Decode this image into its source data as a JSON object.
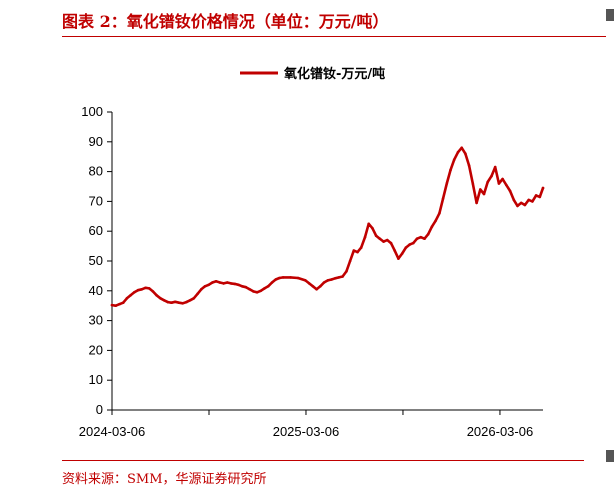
{
  "figure": {
    "title": "图表 2：氧化镨钕价格情况（单位：万元/吨）",
    "source": "资料来源：SMM，华源证券研究所",
    "accent_color": "#c00000"
  },
  "chart_data": {
    "type": "line",
    "title": "",
    "xlabel": "",
    "ylabel": "",
    "ylim": [
      0,
      100
    ],
    "yticks": [
      0,
      10,
      20,
      30,
      40,
      50,
      60,
      70,
      80,
      90,
      100
    ],
    "grid": false,
    "legend": "top-center",
    "x_range": [
      "2024-03-06",
      "2026-05-26"
    ],
    "xtick_labels": [
      "2024-03-06",
      "2025-03-06",
      "2026-03-06"
    ],
    "series": [
      {
        "name": "氧化镨钕-万元/吨",
        "color": "#c00000",
        "points": [
          [
            "2024-03-06",
            35.2
          ],
          [
            "2024-03-13",
            35.0
          ],
          [
            "2024-03-20",
            35.5
          ],
          [
            "2024-03-27",
            36.0
          ],
          [
            "2024-04-03",
            37.5
          ],
          [
            "2024-04-10",
            38.5
          ],
          [
            "2024-04-17",
            39.5
          ],
          [
            "2024-04-24",
            40.2
          ],
          [
            "2024-05-01",
            40.5
          ],
          [
            "2024-05-08",
            41.0
          ],
          [
            "2024-05-15",
            40.8
          ],
          [
            "2024-05-22",
            39.8
          ],
          [
            "2024-05-29",
            38.5
          ],
          [
            "2024-06-05",
            37.5
          ],
          [
            "2024-06-12",
            36.8
          ],
          [
            "2024-06-19",
            36.2
          ],
          [
            "2024-06-26",
            36.0
          ],
          [
            "2024-07-03",
            36.3
          ],
          [
            "2024-07-10",
            36.0
          ],
          [
            "2024-07-17",
            35.8
          ],
          [
            "2024-07-24",
            36.2
          ],
          [
            "2024-07-31",
            36.8
          ],
          [
            "2024-08-07",
            37.5
          ],
          [
            "2024-08-14",
            39.0
          ],
          [
            "2024-08-21",
            40.5
          ],
          [
            "2024-08-28",
            41.5
          ],
          [
            "2024-09-04",
            42.0
          ],
          [
            "2024-09-11",
            42.8
          ],
          [
            "2024-09-18",
            43.2
          ],
          [
            "2024-09-25",
            42.8
          ],
          [
            "2024-10-02",
            42.5
          ],
          [
            "2024-10-09",
            42.8
          ],
          [
            "2024-10-16",
            42.5
          ],
          [
            "2024-10-23",
            42.3
          ],
          [
            "2024-10-30",
            42.0
          ],
          [
            "2024-11-06",
            41.5
          ],
          [
            "2024-11-13",
            41.2
          ],
          [
            "2024-11-20",
            40.5
          ],
          [
            "2024-11-27",
            39.8
          ],
          [
            "2024-12-04",
            39.5
          ],
          [
            "2024-12-11",
            40.0
          ],
          [
            "2024-12-18",
            40.8
          ],
          [
            "2024-12-25",
            41.5
          ],
          [
            "2025-01-01",
            42.8
          ],
          [
            "2025-01-08",
            43.8
          ],
          [
            "2025-01-15",
            44.3
          ],
          [
            "2025-01-22",
            44.5
          ],
          [
            "2025-02-05",
            44.5
          ],
          [
            "2025-02-19",
            44.3
          ],
          [
            "2025-03-05",
            43.5
          ],
          [
            "2025-03-12",
            42.5
          ],
          [
            "2025-03-19",
            41.5
          ],
          [
            "2025-03-26",
            40.5
          ],
          [
            "2025-04-02",
            41.5
          ],
          [
            "2025-04-09",
            42.8
          ],
          [
            "2025-04-16",
            43.5
          ],
          [
            "2025-04-23",
            43.8
          ],
          [
            "2025-04-30",
            44.2
          ],
          [
            "2025-05-07",
            44.5
          ],
          [
            "2025-05-14",
            44.8
          ],
          [
            "2025-05-21",
            46.5
          ],
          [
            "2025-05-28",
            50.0
          ],
          [
            "2025-06-04",
            53.5
          ],
          [
            "2025-06-11",
            53.0
          ],
          [
            "2025-06-18",
            54.5
          ],
          [
            "2025-06-25",
            58.0
          ],
          [
            "2025-07-02",
            62.5
          ],
          [
            "2025-07-09",
            61.0
          ],
          [
            "2025-07-16",
            58.5
          ],
          [
            "2025-07-23",
            57.5
          ],
          [
            "2025-07-30",
            56.5
          ],
          [
            "2025-08-06",
            57.0
          ],
          [
            "2025-08-13",
            56.0
          ],
          [
            "2025-08-20",
            53.5
          ],
          [
            "2025-08-27",
            50.8
          ],
          [
            "2025-09-03",
            52.5
          ],
          [
            "2025-09-10",
            54.5
          ],
          [
            "2025-09-17",
            55.5
          ],
          [
            "2025-09-24",
            56.0
          ],
          [
            "2025-10-01",
            57.5
          ],
          [
            "2025-10-08",
            58.0
          ],
          [
            "2025-10-15",
            57.5
          ],
          [
            "2025-10-22",
            59.0
          ],
          [
            "2025-10-29",
            61.5
          ],
          [
            "2025-11-05",
            63.5
          ],
          [
            "2025-11-12",
            66.0
          ],
          [
            "2025-11-19",
            71.0
          ],
          [
            "2025-11-26",
            76.0
          ],
          [
            "2025-12-03",
            80.5
          ],
          [
            "2025-12-10",
            84.0
          ],
          [
            "2025-12-17",
            86.5
          ],
          [
            "2025-12-24",
            88.0
          ],
          [
            "2025-12-31",
            86.0
          ],
          [
            "2026-01-07",
            82.0
          ],
          [
            "2026-01-14",
            76.0
          ],
          [
            "2026-01-21",
            69.5
          ],
          [
            "2026-01-28",
            74.0
          ],
          [
            "2026-02-04",
            72.5
          ],
          [
            "2026-02-11",
            76.5
          ],
          [
            "2026-02-18",
            78.5
          ],
          [
            "2026-02-25",
            81.5
          ],
          [
            "2026-03-04",
            76.0
          ],
          [
            "2026-03-11",
            77.5
          ],
          [
            "2026-03-18",
            75.5
          ],
          [
            "2026-03-25",
            73.5
          ],
          [
            "2026-04-01",
            70.5
          ],
          [
            "2026-04-08",
            68.5
          ],
          [
            "2026-04-15",
            69.5
          ],
          [
            "2026-04-22",
            68.8
          ],
          [
            "2026-04-29",
            70.5
          ],
          [
            "2026-05-06",
            70.0
          ],
          [
            "2026-05-13",
            72.0
          ],
          [
            "2026-05-20",
            71.5
          ],
          [
            "2026-05-26",
            74.5
          ]
        ]
      }
    ]
  }
}
